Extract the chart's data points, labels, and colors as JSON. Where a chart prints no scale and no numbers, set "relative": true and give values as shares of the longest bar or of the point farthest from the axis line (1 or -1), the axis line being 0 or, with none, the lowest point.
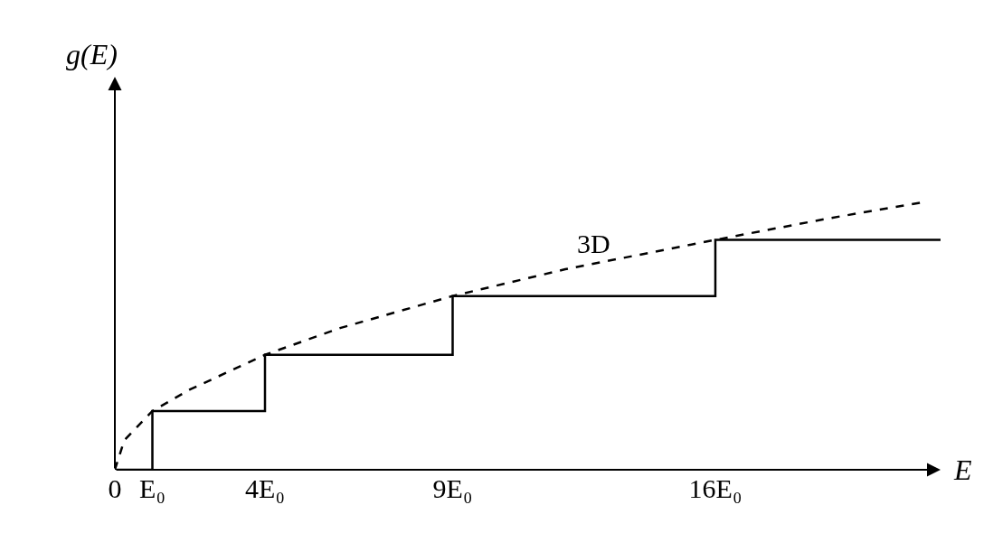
{
  "chart_data": {
    "type": "step",
    "xlabel": "E",
    "ylabel": "g(E)",
    "relative": true,
    "xlim": [
      0,
      22
    ],
    "xticks": [
      0,
      {
        "value": 1,
        "label": "E₀"
      },
      {
        "value": 4,
        "label": "4E₀"
      },
      {
        "value": 9,
        "label": "9E₀"
      },
      {
        "value": 16,
        "label": "16E₀"
      }
    ],
    "marker": "none",
    "series": [
      {
        "color": "#000000",
        "line_style": "solid",
        "x": [
          0,
          1,
          4,
          9,
          16,
          22
        ],
        "values": [
          0,
          0.22,
          0.43,
          0.65,
          0.86,
          0.86
        ]
      },
      {
        "type": "line",
        "color": "#000000",
        "line_style": "dashed",
        "x": [
          0,
          0.25,
          1,
          2,
          4,
          6,
          9,
          12,
          16,
          19,
          21.5
        ],
        "values": [
          0,
          0.11,
          0.22,
          0.3,
          0.43,
          0.53,
          0.65,
          0.75,
          0.86,
          0.94,
          1.0
        ]
      }
    ],
    "annotations": [
      "3D"
    ]
  }
}
